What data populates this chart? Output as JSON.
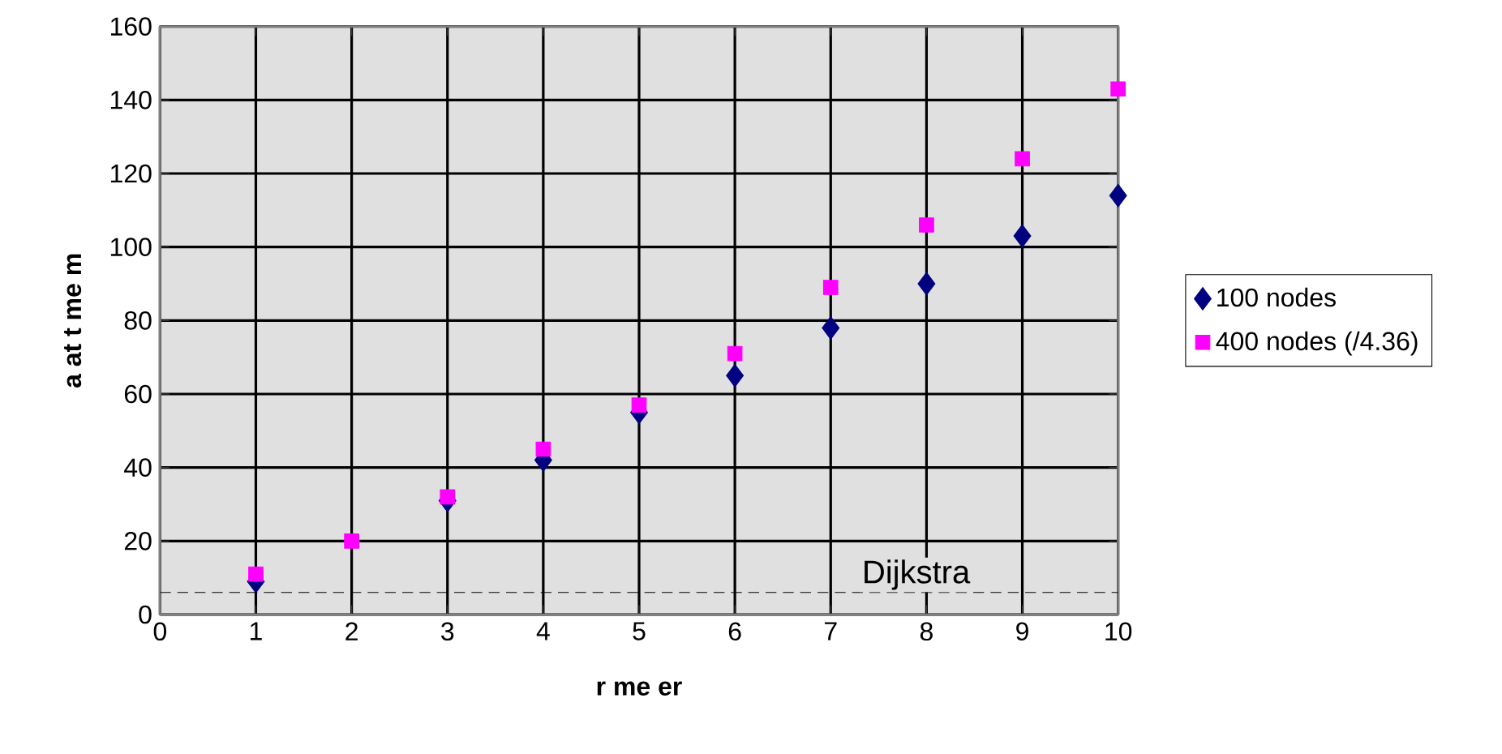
{
  "chart_data": {
    "type": "scatter",
    "xlabel": "r me er",
    "ylabel": "a at t me m",
    "x": [
      1,
      2,
      3,
      4,
      5,
      6,
      7,
      8,
      9,
      10
    ],
    "series": [
      {
        "name": "100 nodes",
        "color": "#000080",
        "marker": "diamond",
        "values": [
          9,
          null,
          31,
          42,
          55,
          65,
          78,
          90,
          103,
          114
        ]
      },
      {
        "name": "400 nodes (/4.36)",
        "color": "#ff00ff",
        "marker": "square",
        "values": [
          11,
          20,
          32,
          45,
          57,
          71,
          89,
          106,
          124,
          143
        ]
      }
    ],
    "xlim": [
      0,
      10
    ],
    "xticks": [
      0,
      1,
      2,
      3,
      4,
      5,
      6,
      7,
      8,
      9,
      10
    ],
    "ylim": [
      0,
      160
    ],
    "yticks": [
      0,
      20,
      40,
      60,
      80,
      100,
      120,
      140,
      160
    ],
    "ref_lines": [
      {
        "axis": "y",
        "value": 6,
        "label": "Dijkstra",
        "line_style": "dashed"
      }
    ],
    "grid": true,
    "legend": "right"
  }
}
